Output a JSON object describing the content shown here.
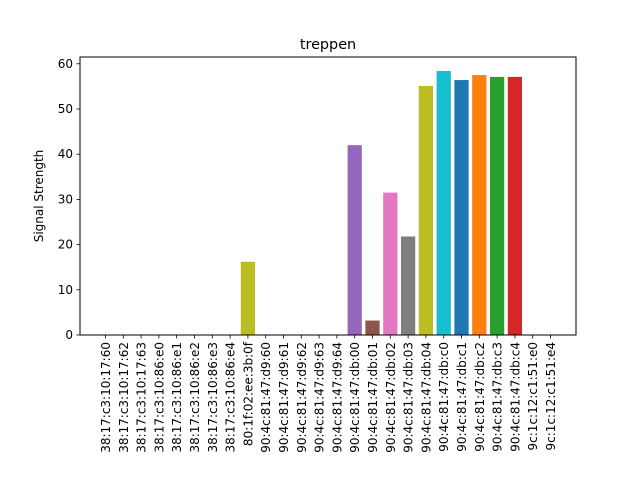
{
  "chart_data": {
    "type": "bar",
    "title": "treppen",
    "xlabel": "",
    "ylabel": "Signal Strength",
    "ylim": [
      0,
      61.5
    ],
    "yticks": [
      0,
      10,
      20,
      30,
      40,
      50,
      60
    ],
    "grid": false,
    "categories": [
      "38:17:c3:10:17:60",
      "38:17:c3:10:17:62",
      "38:17:c3:10:17:63",
      "38:17:c3:10:86:e0",
      "38:17:c3:10:86:e1",
      "38:17:c3:10:86:e2",
      "38:17:c3:10:86:e3",
      "38:17:c3:10:86:e4",
      "80:1f:02:ee:3b:0f",
      "90:4c:81:47:d9:60",
      "90:4c:81:47:d9:61",
      "90:4c:81:47:d9:62",
      "90:4c:81:47:d9:63",
      "90:4c:81:47:d9:64",
      "90:4c:81:47:db:00",
      "90:4c:81:47:db:01",
      "90:4c:81:47:db:02",
      "90:4c:81:47:db:03",
      "90:4c:81:47:db:04",
      "90:4c:81:47:db:c0",
      "90:4c:81:47:db:c1",
      "90:4c:81:47:db:c2",
      "90:4c:81:47:db:c3",
      "90:4c:81:47:db:c4",
      "9c:1c:12:c1:51:e0",
      "9c:1c:12:c1:51:e4"
    ],
    "values": [
      0,
      0,
      0,
      0,
      0,
      0,
      0,
      0,
      16.2,
      0,
      0,
      0,
      0,
      0,
      42.0,
      3.2,
      31.5,
      21.8,
      55.1,
      58.4,
      56.4,
      57.5,
      57.1,
      57.1,
      0,
      0
    ],
    "colors": [
      "#1f77b4",
      "#ff7f0e",
      "#2ca02c",
      "#d62728",
      "#9467bd",
      "#8c564b",
      "#e377c2",
      "#7f7f7f",
      "#bcbd22",
      "#17becf",
      "#1f77b4",
      "#ff7f0e",
      "#2ca02c",
      "#d62728",
      "#9467bd",
      "#8c564b",
      "#e377c2",
      "#7f7f7f",
      "#bcbd22",
      "#17becf",
      "#1f77b4",
      "#ff7f0e",
      "#2ca02c",
      "#d62728",
      "#9467bd",
      "#8c564b"
    ]
  }
}
